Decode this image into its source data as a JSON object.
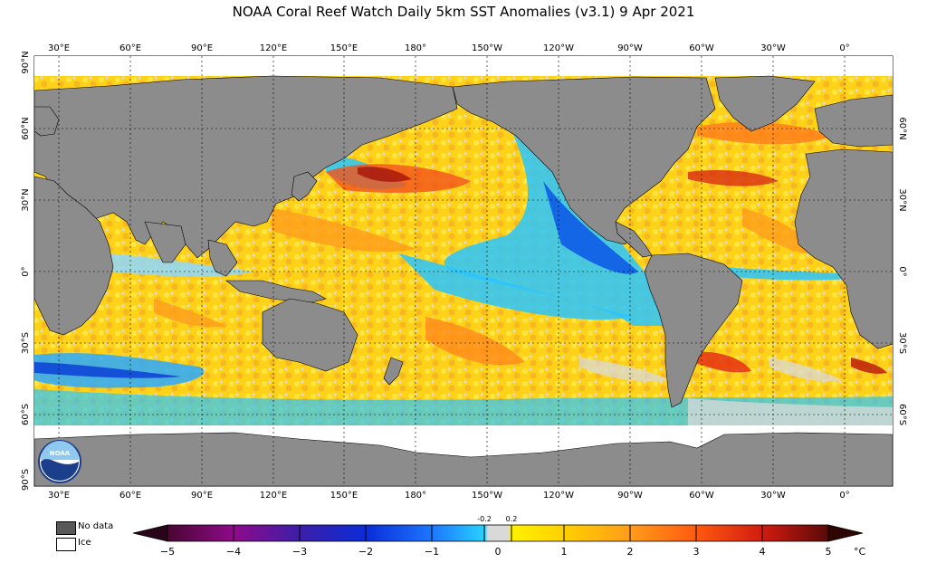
{
  "title": "NOAA Coral Reef Watch Daily 5km SST Anomalies  (v3.1)   9 Apr 2021",
  "lon_labels": [
    "30°E",
    "60°E",
    "90°E",
    "120°E",
    "150°E",
    "180°",
    "150°W",
    "120°W",
    "90°W",
    "60°W",
    "30°W",
    "0°"
  ],
  "lat_labels_left": [
    "90°N",
    "60°N",
    "30°N",
    "0°",
    "30°S",
    "60°S",
    "90°S"
  ],
  "lat_labels_right": [
    "60°N",
    "30°N",
    "0°",
    "30°S",
    "60°S"
  ],
  "legend": {
    "nodata_label": "No data",
    "ice_label": "Ice"
  },
  "colorbar": {
    "ticks": [
      "−5",
      "−4",
      "−3",
      "−2",
      "−1",
      "0",
      "1",
      "2",
      "3",
      "4",
      "5"
    ],
    "small_ticks": [
      "-0.2",
      "0.2"
    ],
    "unit": "°C"
  },
  "colors": {
    "land": "#8c8c8c",
    "nodata": "#595959",
    "ice": "#ffffff",
    "neutral": "#d8d8d8",
    "warm_low": "#ffe500",
    "warm_mid": "#ff9a1f",
    "warm_high": "#e52510",
    "cool_low": "#29c6ff",
    "cool_mid": "#0a55e6",
    "cool_high": "#1a0f9e"
  }
}
